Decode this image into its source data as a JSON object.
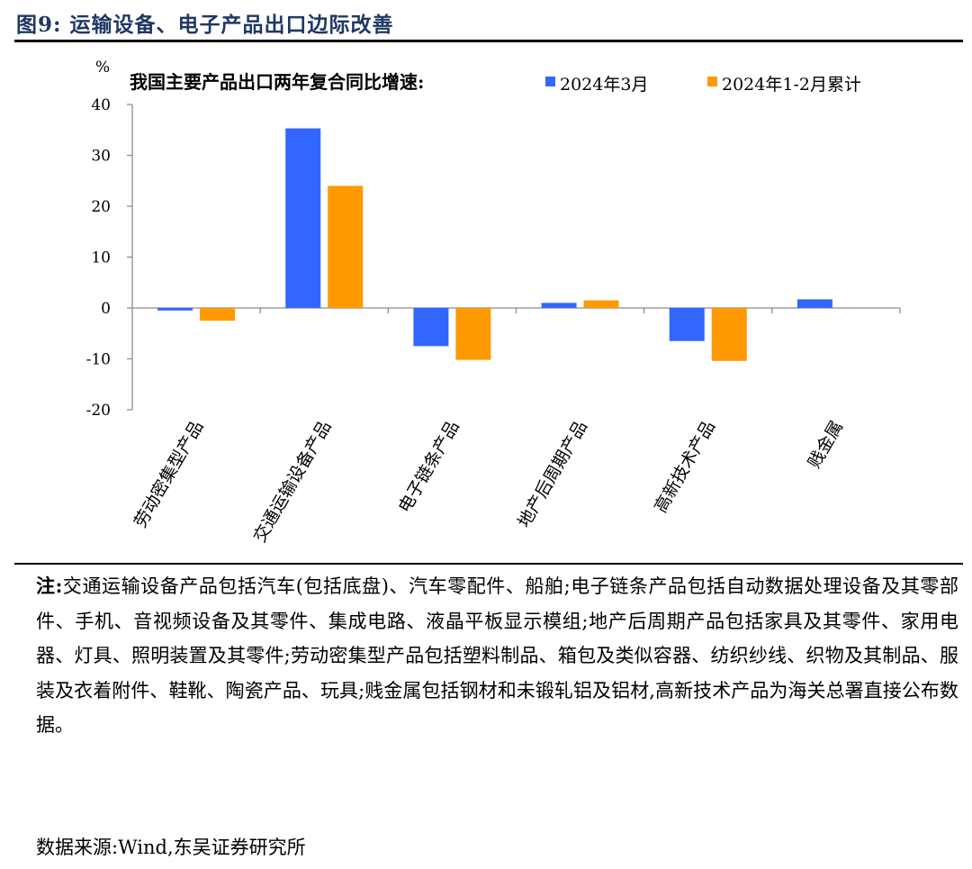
{
  "figure": {
    "label": "图9:",
    "title": "运输设备、电子产品出口边际改善"
  },
  "chart_data": {
    "type": "bar",
    "title": "我国主要产品出口两年复合同比增速:",
    "unit": "%",
    "categories": [
      "劳动密集型产品",
      "交通运输设备产品",
      "电子链条产品",
      "地产后周期产品",
      "高新技术产品",
      "贱金属"
    ],
    "series": [
      {
        "name": "2024年3月",
        "color": "#3366ff",
        "values": [
          -0.5,
          35.3,
          -7.5,
          1.0,
          -6.5,
          1.7
        ]
      },
      {
        "name": "2024年1-2月累计",
        "color": "#ff9900",
        "values": [
          -2.5,
          24.0,
          -10.2,
          1.5,
          -10.4,
          null
        ]
      }
    ],
    "ylim": [
      -20,
      40
    ],
    "yticks": [
      40,
      30,
      20,
      10,
      0,
      -10,
      -20
    ],
    "grid": false,
    "legend_position": "top"
  },
  "note": {
    "label": "注:",
    "text": "交通运输设备产品包括汽车(包括底盘)、汽车零配件、船舶;电子链条产品包括自动数据处理设备及其零部件、手机、音视频设备及其零件、集成电路、液晶平板显示模组;地产后周期产品包括家具及其零件、家用电器、灯具、照明装置及其零件;劳动密集型产品包括塑料制品、箱包及类似容器、纺织纱线、织物及其制品、服装及衣着附件、鞋靴、陶瓷产品、玩具;贱金属包括钢材和未锻轧铝及铝材,高新技术产品为海关总署直接公布数据。"
  },
  "source": "数据来源:Wind,东吴证券研究所"
}
